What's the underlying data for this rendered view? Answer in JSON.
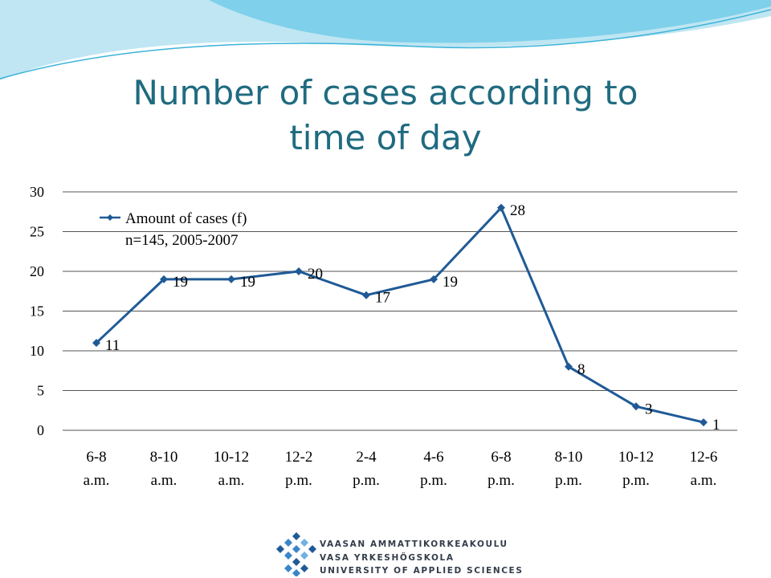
{
  "title": "Number of cases according to time of day",
  "title_lines": [
    "Number of cases according to",
    "time of day"
  ],
  "colors": {
    "title": "#1f6b80",
    "series": "#1f5a96",
    "grid": "#555555",
    "wave_light": "#bfe6f2",
    "wave_mid": "#7fd0ea",
    "wave_dark": "#3bb3d9"
  },
  "chart_data": {
    "type": "line",
    "categories": [
      [
        "6-8",
        "a.m."
      ],
      [
        "8-10",
        "a.m."
      ],
      [
        "10-12",
        "a.m."
      ],
      [
        "12-2",
        "p.m."
      ],
      [
        "2-4",
        "p.m."
      ],
      [
        "4-6",
        "p.m."
      ],
      [
        "6-8",
        "p.m."
      ],
      [
        "8-10",
        "p.m."
      ],
      [
        "10-12",
        "p.m."
      ],
      [
        "12-6",
        "a.m."
      ]
    ],
    "series": [
      {
        "name": "Amount of cases (f)",
        "values": [
          11,
          19,
          19,
          20,
          17,
          19,
          28,
          8,
          3,
          1
        ]
      }
    ],
    "legend_note": "n=145, 2005-2007",
    "legend_position": "top-left",
    "data_labels": true,
    "yticks": [
      0,
      5,
      10,
      15,
      20,
      25,
      30
    ],
    "ylim": [
      0,
      30
    ],
    "grid": true
  },
  "logo": {
    "lines": [
      "VAASAN AMMATTIKORKEAKOULU",
      "VASA YRKESHÖGSKOLA",
      "UNIVERSITY OF APPLIED SCIENCES"
    ],
    "icon": "diamond-dot-grid-icon"
  }
}
